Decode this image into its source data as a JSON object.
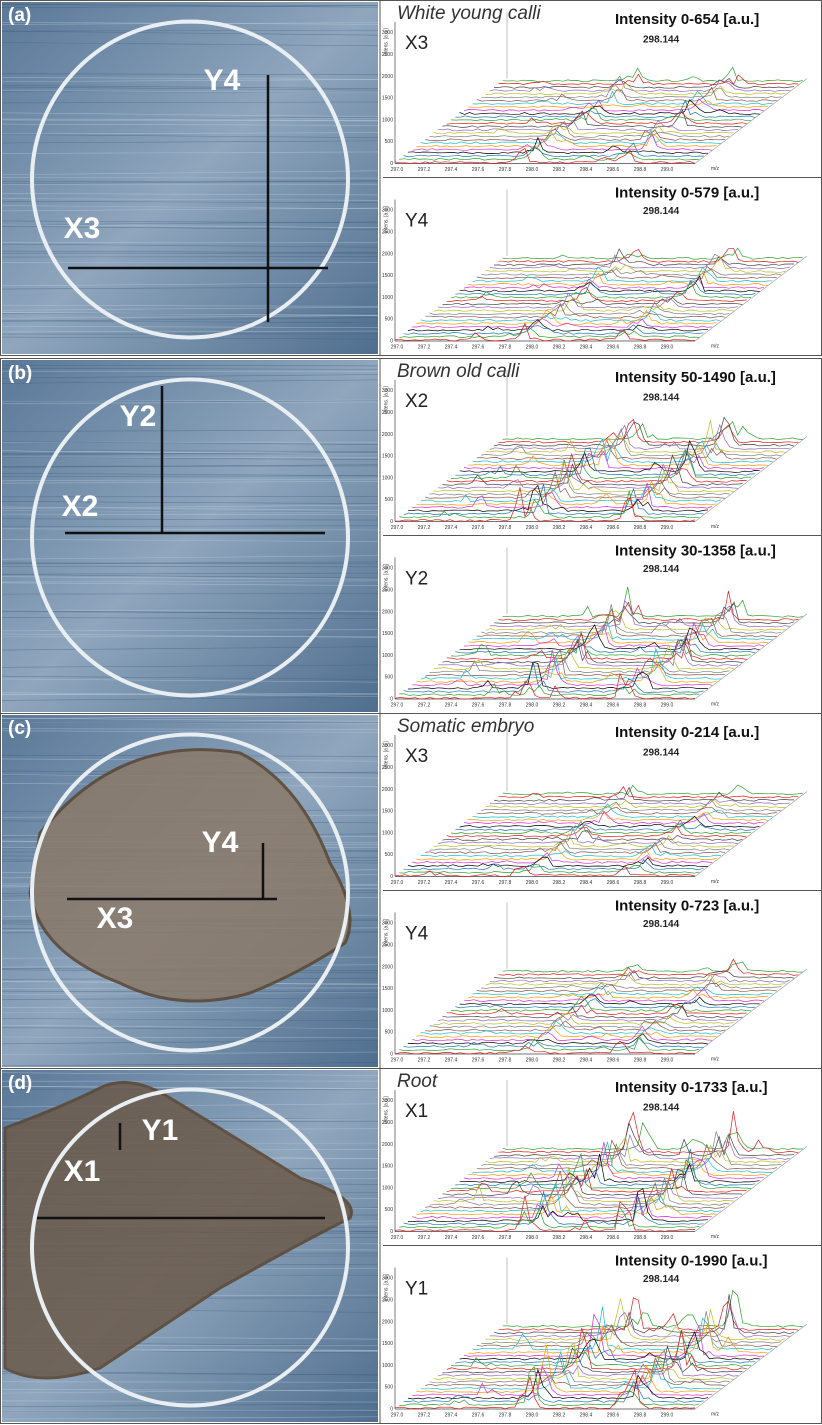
{
  "panels": [
    {
      "label": "(a)",
      "sample": "White young calli",
      "photo_labels": [
        "Y4",
        "X3"
      ],
      "plots": [
        {
          "axis": "X3",
          "intensity": "Intensity 0-654 [a.u.]",
          "peak": "298.144"
        },
        {
          "axis": "Y4",
          "intensity": "Intensity 0-579 [a.u.]",
          "peak": "298.144"
        }
      ]
    },
    {
      "label": "(b)",
      "sample": "Brown old calli",
      "photo_labels": [
        "Y2",
        "X2"
      ],
      "plots": [
        {
          "axis": "X2",
          "intensity": "Intensity 50-1490 [a.u.]",
          "peak": "298.144"
        },
        {
          "axis": "Y2",
          "intensity": "Intensity 30-1358 [a.u.]",
          "peak": "298.144"
        }
      ]
    },
    {
      "label": "(c)",
      "sample": "Somatic embryo",
      "photo_labels": [
        "Y4",
        "X3"
      ],
      "plots": [
        {
          "axis": "X3",
          "intensity": "Intensity 0-214 [a.u.]",
          "peak": "298.144"
        },
        {
          "axis": "Y4",
          "intensity": "Intensity 0-723 [a.u.]",
          "peak": "298.144"
        }
      ]
    },
    {
      "label": "(d)",
      "sample": "Root",
      "photo_labels": [
        "Y1",
        "X1"
      ],
      "plots": [
        {
          "axis": "X1",
          "intensity": "Intensity 0-1733 [a.u.]",
          "peak": "298.144"
        },
        {
          "axis": "Y1",
          "intensity": "Intensity 0-1990 [a.u.]",
          "peak": "298.144"
        }
      ]
    }
  ],
  "x_ticks": [
    "297.0",
    "297.2",
    "297.4",
    "297.6",
    "297.8",
    "298.0",
    "298.2",
    "298.4",
    "298.6",
    "298.8",
    "299.0"
  ],
  "x_unit": "m/z",
  "y_ticks": [
    "0",
    "500",
    "1000",
    "1500",
    "2000",
    "2500",
    "3000"
  ],
  "y_unit": "Intens. [a.u.]"
}
